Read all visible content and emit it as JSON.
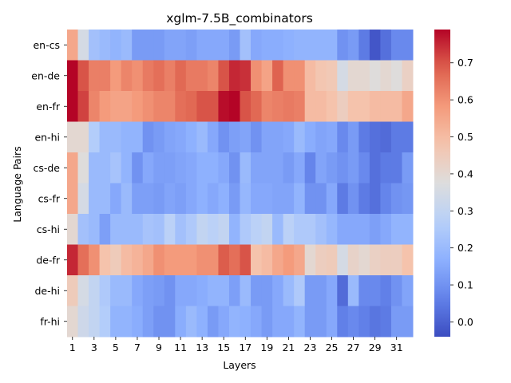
{
  "chart_data": {
    "type": "heatmap",
    "title": "xglm-7.5B_combinators",
    "xlabel": "Layers",
    "ylabel": "Language Pairs",
    "x": [
      1,
      2,
      3,
      4,
      5,
      6,
      7,
      8,
      9,
      10,
      11,
      12,
      13,
      14,
      15,
      16,
      17,
      18,
      19,
      20,
      21,
      22,
      23,
      24,
      25,
      26,
      27,
      28,
      29,
      30,
      31,
      32
    ],
    "x_tick_labels": [
      "1",
      "3",
      "5",
      "7",
      "9",
      "11",
      "13",
      "15",
      "17",
      "19",
      "21",
      "23",
      "25",
      "27",
      "29",
      "31"
    ],
    "y": [
      "en-cs",
      "en-de",
      "en-fr",
      "en-hi",
      "cs-de",
      "cs-fr",
      "cs-hi",
      "de-fr",
      "de-hi",
      "fr-hi"
    ],
    "colormap": "coolwarm",
    "vmin": -0.04,
    "vmax": 0.79,
    "colorbar_ticks": [
      0.0,
      0.1,
      0.2,
      0.3,
      0.4,
      0.5,
      0.6,
      0.7
    ],
    "colorbar_tick_labels": [
      "0.0",
      "0.1",
      "0.2",
      "0.3",
      "0.4",
      "0.5",
      "0.6",
      "0.7"
    ],
    "values": [
      [
        0.55,
        0.35,
        0.22,
        0.2,
        0.18,
        0.2,
        0.12,
        0.12,
        0.12,
        0.14,
        0.14,
        0.13,
        0.15,
        0.15,
        0.15,
        0.12,
        0.22,
        0.15,
        0.16,
        0.16,
        0.17,
        0.18,
        0.18,
        0.18,
        0.18,
        0.1,
        0.12,
        0.05,
        -0.02,
        0.03,
        0.08,
        0.08
      ],
      [
        0.79,
        0.7,
        0.63,
        0.63,
        0.58,
        0.62,
        0.6,
        0.64,
        0.66,
        0.63,
        0.67,
        0.64,
        0.64,
        0.62,
        0.7,
        0.75,
        0.74,
        0.6,
        0.56,
        0.68,
        0.6,
        0.6,
        0.5,
        0.47,
        0.46,
        0.35,
        0.4,
        0.4,
        0.38,
        0.4,
        0.38,
        0.43
      ],
      [
        0.79,
        0.72,
        0.62,
        0.58,
        0.56,
        0.56,
        0.58,
        0.6,
        0.62,
        0.62,
        0.66,
        0.67,
        0.7,
        0.7,
        0.78,
        0.79,
        0.7,
        0.67,
        0.62,
        0.63,
        0.64,
        0.63,
        0.5,
        0.5,
        0.48,
        0.44,
        0.48,
        0.48,
        0.5,
        0.5,
        0.5,
        0.55
      ],
      [
        0.4,
        0.4,
        0.26,
        0.2,
        0.2,
        0.18,
        0.18,
        0.1,
        0.12,
        0.14,
        0.15,
        0.17,
        0.2,
        0.15,
        0.1,
        0.13,
        0.14,
        0.1,
        0.14,
        0.14,
        0.15,
        0.2,
        0.16,
        0.14,
        0.15,
        0.08,
        0.12,
        0.05,
        0.03,
        0.02,
        0.05,
        0.05
      ],
      [
        0.55,
        0.38,
        0.2,
        0.2,
        0.23,
        0.18,
        0.1,
        0.15,
        0.13,
        0.13,
        0.14,
        0.15,
        0.17,
        0.17,
        0.15,
        0.1,
        0.2,
        0.14,
        0.14,
        0.14,
        0.12,
        0.15,
        0.07,
        0.14,
        0.12,
        0.1,
        0.12,
        0.08,
        0.03,
        0.05,
        0.05,
        0.12
      ],
      [
        0.55,
        0.35,
        0.2,
        0.2,
        0.15,
        0.2,
        0.13,
        0.13,
        0.12,
        0.14,
        0.13,
        0.15,
        0.17,
        0.15,
        0.17,
        0.12,
        0.19,
        0.15,
        0.15,
        0.14,
        0.14,
        0.18,
        0.1,
        0.1,
        0.15,
        0.05,
        0.1,
        0.05,
        0.03,
        0.07,
        0.1,
        0.11
      ],
      [
        0.4,
        0.22,
        0.2,
        0.13,
        0.2,
        0.2,
        0.2,
        0.23,
        0.22,
        0.28,
        0.22,
        0.25,
        0.3,
        0.28,
        0.3,
        0.18,
        0.25,
        0.28,
        0.3,
        0.2,
        0.28,
        0.25,
        0.25,
        0.22,
        0.19,
        0.15,
        0.15,
        0.15,
        0.13,
        0.15,
        0.18,
        0.18
      ],
      [
        0.75,
        0.66,
        0.6,
        0.48,
        0.45,
        0.5,
        0.52,
        0.55,
        0.6,
        0.58,
        0.58,
        0.58,
        0.6,
        0.6,
        0.69,
        0.66,
        0.7,
        0.48,
        0.5,
        0.55,
        0.58,
        0.55,
        0.4,
        0.44,
        0.45,
        0.35,
        0.42,
        0.4,
        0.43,
        0.44,
        0.44,
        0.48
      ],
      [
        0.45,
        0.35,
        0.3,
        0.25,
        0.2,
        0.2,
        0.15,
        0.13,
        0.12,
        0.1,
        0.15,
        0.15,
        0.16,
        0.18,
        0.18,
        0.13,
        0.2,
        0.12,
        0.12,
        0.15,
        0.2,
        0.25,
        0.12,
        0.12,
        0.15,
        0.02,
        0.2,
        0.08,
        0.08,
        0.06,
        0.1,
        0.14
      ],
      [
        0.4,
        0.33,
        0.3,
        0.26,
        0.18,
        0.18,
        0.16,
        0.13,
        0.1,
        0.1,
        0.16,
        0.2,
        0.17,
        0.12,
        0.15,
        0.18,
        0.17,
        0.15,
        0.12,
        0.15,
        0.15,
        0.18,
        0.12,
        0.12,
        0.15,
        0.06,
        0.08,
        0.06,
        0.04,
        0.05,
        0.12,
        0.12
      ]
    ]
  }
}
